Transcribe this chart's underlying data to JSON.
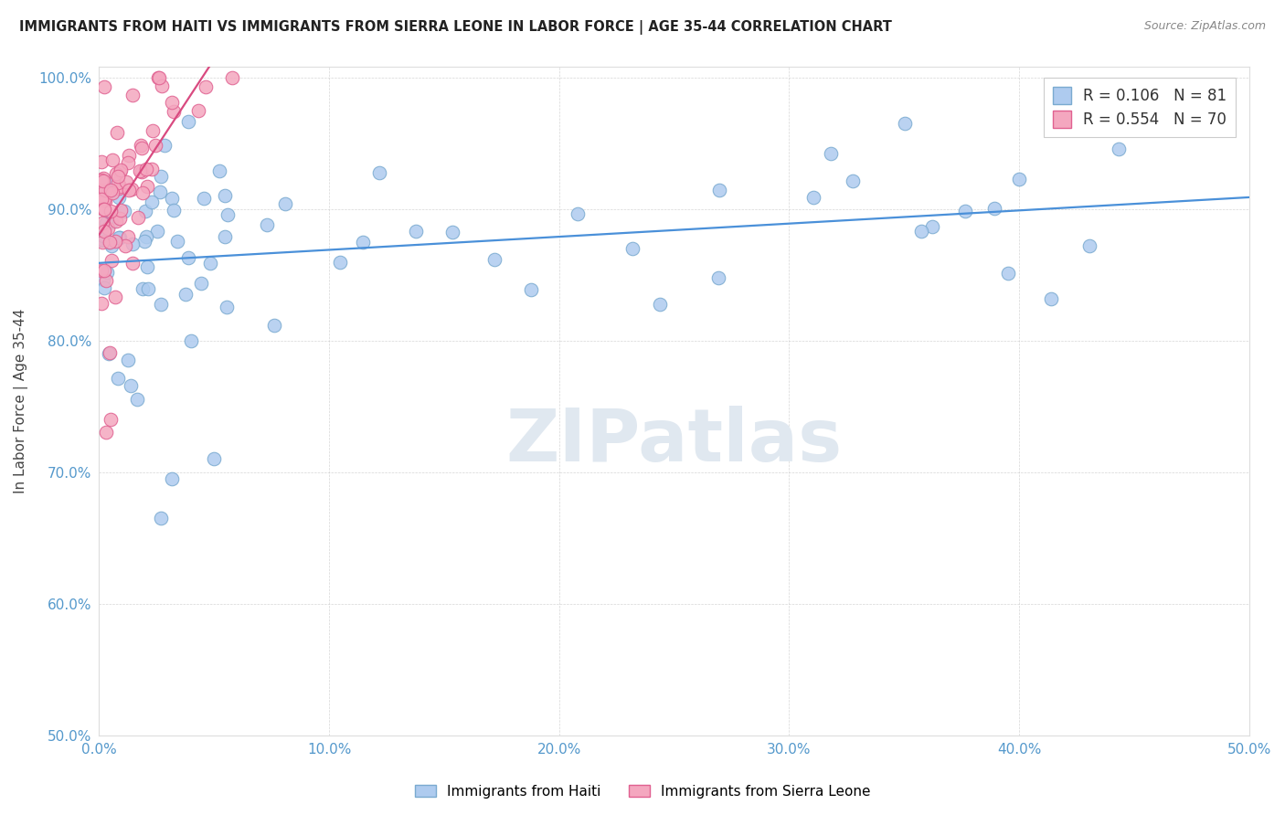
{
  "title": "IMMIGRANTS FROM HAITI VS IMMIGRANTS FROM SIERRA LEONE IN LABOR FORCE | AGE 35-44 CORRELATION CHART",
  "source": "Source: ZipAtlas.com",
  "ylabel": "In Labor Force | Age 35-44",
  "xlim": [
    0.0,
    0.5
  ],
  "ylim": [
    0.5,
    1.008
  ],
  "xticks": [
    0.0,
    0.1,
    0.2,
    0.3,
    0.4,
    0.5
  ],
  "xtick_labels": [
    "0.0%",
    "10.0%",
    "20.0%",
    "30.0%",
    "40.0%",
    "50.0%"
  ],
  "yticks": [
    0.5,
    0.6,
    0.7,
    0.8,
    0.9,
    1.0
  ],
  "ytick_labels": [
    "50.0%",
    "60.0%",
    "70.0%",
    "80.0%",
    "90.0%",
    "100.0%"
  ],
  "haiti_color": "#aecbef",
  "haiti_edge": "#7aaad0",
  "sierra_color": "#f4a7bf",
  "sierra_edge": "#e06090",
  "haiti_line_color": "#4a90d9",
  "sierra_line_color": "#d94a80",
  "haiti_R": 0.106,
  "haiti_N": 81,
  "sierra_R": 0.554,
  "sierra_N": 70,
  "watermark": "ZIPatlas",
  "legend_haiti": "Immigrants from Haiti",
  "legend_sierra": "Immigrants from Sierra Leone"
}
